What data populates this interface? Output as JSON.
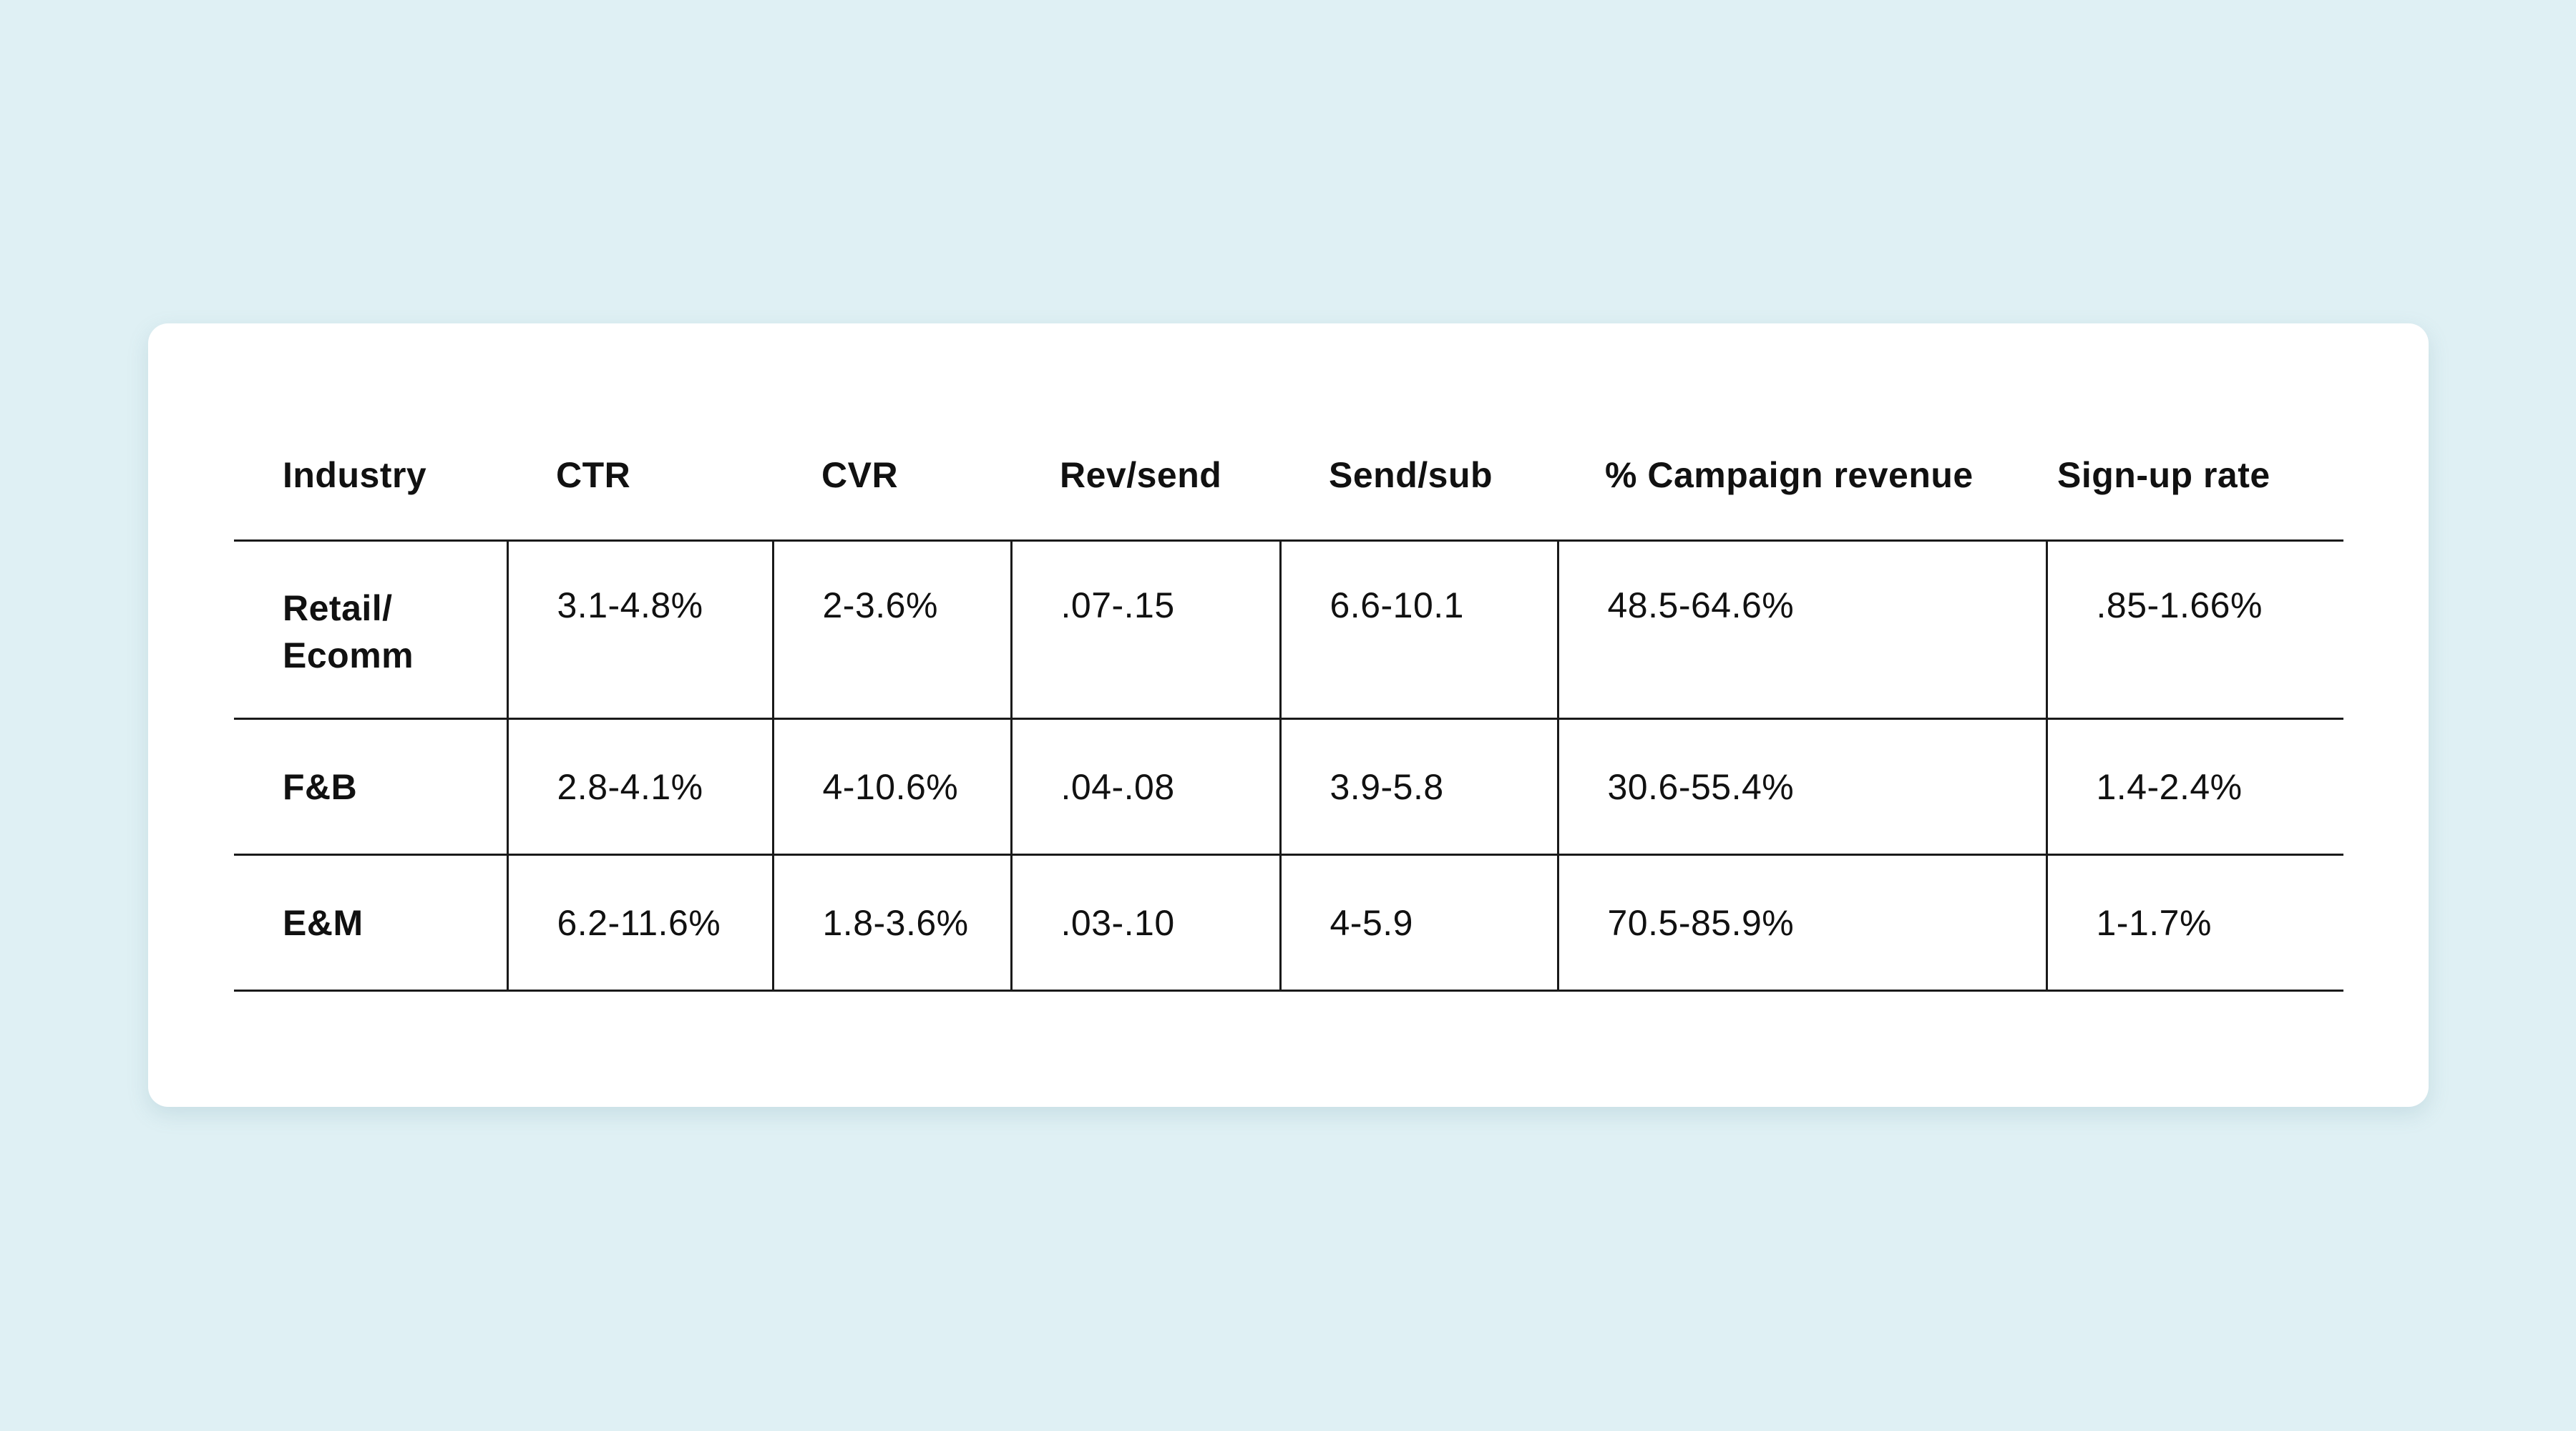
{
  "table": {
    "headers": [
      "Industry",
      "CTR",
      "CVR",
      "Rev/send",
      "Send/sub",
      "% Campaign revenue",
      "Sign-up rate"
    ],
    "rows": [
      [
        "Retail/ Ecomm",
        "3.1-4.8%",
        "2-3.6%",
        ".07-.15",
        "6.6-10.1",
        "48.5-64.6%",
        ".85-1.66%"
      ],
      [
        "F&B",
        "2.8-4.1%",
        "4-10.6%",
        ".04-.08",
        "3.9-5.8",
        "30.6-55.4%",
        "1.4-2.4%"
      ],
      [
        "E&M",
        "6.2-11.6%",
        "1.8-3.6%",
        ".03-.10",
        "4-5.9",
        "70.5-85.9%",
        "1-1.7%"
      ]
    ]
  },
  "colors": {
    "background": "#dff0f4",
    "card": "#ffffff",
    "text": "#111111",
    "rule": "#1a1a1a"
  }
}
